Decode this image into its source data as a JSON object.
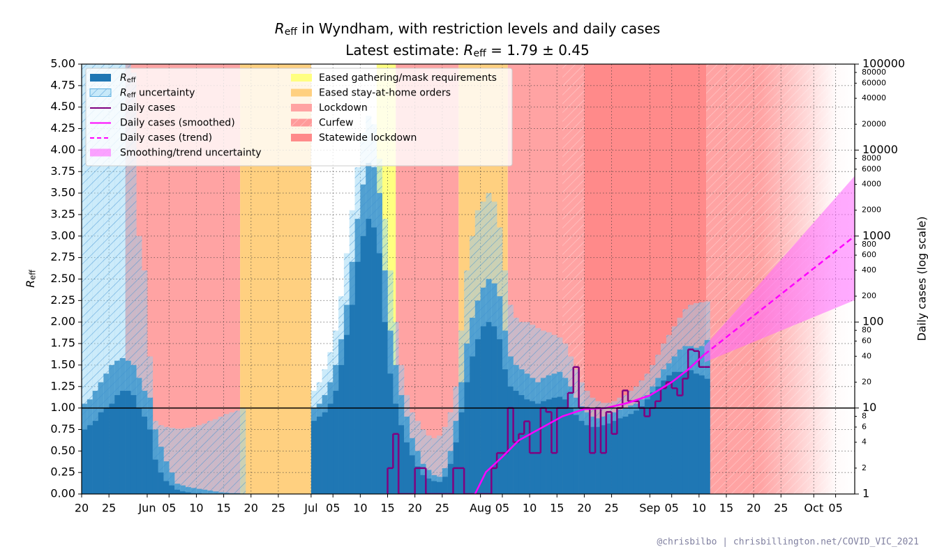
{
  "chart_data": {
    "type": "line",
    "title": [
      {
        "text": "R",
        "style": "italic"
      },
      {
        "text": "eff",
        "style": "sub"
      },
      {
        "text": " in Wyndham, with restriction levels and daily cases"
      }
    ],
    "subtitle": [
      {
        "text": "Latest estimate: "
      },
      {
        "text": "R",
        "style": "italic"
      },
      {
        "text": "eff",
        "style": "sub"
      },
      {
        "text": " = 1.79 ± 0.45"
      }
    ],
    "ylabel": [
      {
        "text": "R",
        "style": "italic"
      },
      {
        "text": "eff",
        "style": "sub"
      }
    ],
    "y2label": "Daily cases (log scale)",
    "xlim": [
      0,
      141.5
    ],
    "xticks": [
      {
        "value": 0,
        "label": "20"
      },
      {
        "value": 5,
        "label": "25"
      },
      {
        "value": 12,
        "label": "Jun"
      },
      {
        "value": 16,
        "label": "05"
      },
      {
        "value": 21,
        "label": "10"
      },
      {
        "value": 26,
        "label": "15"
      },
      {
        "value": 31,
        "label": "20"
      },
      {
        "value": 36,
        "label": "25"
      },
      {
        "value": 42,
        "label": "Jul"
      },
      {
        "value": 46,
        "label": "05"
      },
      {
        "value": 51,
        "label": "10"
      },
      {
        "value": 56,
        "label": "15"
      },
      {
        "value": 61,
        "label": "20"
      },
      {
        "value": 66,
        "label": "25"
      },
      {
        "value": 73,
        "label": "Aug"
      },
      {
        "value": 77,
        "label": "05"
      },
      {
        "value": 82,
        "label": "10"
      },
      {
        "value": 87,
        "label": "15"
      },
      {
        "value": 92,
        "label": "20"
      },
      {
        "value": 97,
        "label": "25"
      },
      {
        "value": 104,
        "label": "Sep"
      },
      {
        "value": 108,
        "label": "05"
      },
      {
        "value": 113,
        "label": "10"
      },
      {
        "value": 118,
        "label": "15"
      },
      {
        "value": 123,
        "label": "20"
      },
      {
        "value": 128,
        "label": "25"
      },
      {
        "value": 134,
        "label": "Oct"
      },
      {
        "value": 138,
        "label": "05"
      }
    ],
    "ylim": [
      0,
      5
    ],
    "yticks": [
      {
        "value": 0,
        "label": "0.00"
      },
      {
        "value": 0.25,
        "label": "0.25"
      },
      {
        "value": 0.5,
        "label": "0.50"
      },
      {
        "value": 0.75,
        "label": "0.75"
      },
      {
        "value": 1,
        "label": "1.00"
      },
      {
        "value": 1.25,
        "label": "1.25"
      },
      {
        "value": 1.5,
        "label": "1.50"
      },
      {
        "value": 1.75,
        "label": "1.75"
      },
      {
        "value": 2,
        "label": "2.00"
      },
      {
        "value": 2.25,
        "label": "2.25"
      },
      {
        "value": 2.5,
        "label": "2.50"
      },
      {
        "value": 2.75,
        "label": "2.75"
      },
      {
        "value": 3,
        "label": "3.00"
      },
      {
        "value": 3.25,
        "label": "3.25"
      },
      {
        "value": 3.5,
        "label": "3.50"
      },
      {
        "value": 3.75,
        "label": "3.75"
      },
      {
        "value": 4,
        "label": "4.00"
      },
      {
        "value": 4.25,
        "label": "4.25"
      },
      {
        "value": 4.5,
        "label": "4.50"
      },
      {
        "value": 4.75,
        "label": "4.75"
      },
      {
        "value": 5,
        "label": "5.00"
      }
    ],
    "y2lim": [
      1,
      100000
    ],
    "y2scale": "log",
    "y2ticks": [
      1,
      10,
      100,
      1000,
      10000,
      100000
    ],
    "y2minorticks": [
      2,
      4,
      6,
      8,
      20,
      40,
      60,
      80,
      200,
      400,
      600,
      800,
      2000,
      4000,
      6000,
      8000,
      20000,
      40000,
      60000,
      80000
    ],
    "grid": true,
    "hline": 1,
    "legend": "upper left",
    "restrictions": [
      {
        "name": "Eased gathering/mask requirements",
        "color": "#ffff80",
        "hatch": false
      },
      {
        "name": "Eased stay-at-home orders",
        "color": "#ffd080",
        "hatch": false
      },
      {
        "name": "Lockdown",
        "color": "#ffa3a3",
        "hatch": false
      },
      {
        "name": "Curfew",
        "color": "#ff9a9a",
        "hatch": true
      },
      {
        "name": "Statewide lockdown",
        "color": "#ff8a8a",
        "hatch": false
      }
    ],
    "periods": [
      {
        "level": 2,
        "start": 8,
        "end": 29
      },
      {
        "level": 1,
        "start": 29,
        "end": 42
      },
      {
        "level": 0,
        "start": 54,
        "end": 57.5
      },
      {
        "level": 2,
        "start": 57.5,
        "end": 69
      },
      {
        "level": 1,
        "start": 69,
        "end": 78
      },
      {
        "level": 2,
        "start": 78,
        "end": 92
      },
      {
        "level": 3,
        "start": 88,
        "end": 92
      },
      {
        "level": 4,
        "start": 92,
        "end": 114.3
      },
      {
        "level": 2,
        "start": 114.3,
        "end": 141.5
      },
      {
        "level": 3,
        "start": 114.3,
        "end": 141.5
      }
    ],
    "series": [
      {
        "name": [
          {
            "text": "R",
            "style": "italic"
          },
          {
            "text": "eff",
            "style": "sub"
          }
        ],
        "type": "step_area",
        "color": "#1f77b4",
        "band_name": [
          {
            "text": "R",
            "style": "italic"
          },
          {
            "text": "eff",
            "style": "sub"
          },
          {
            "text": " uncertainty"
          }
        ],
        "band_color": "#8fd3f5",
        "x": [
          0,
          1,
          2,
          3,
          4,
          5,
          6,
          7,
          8,
          9,
          10,
          11,
          12,
          13,
          14,
          15,
          16,
          17,
          18,
          19,
          20,
          21,
          22,
          23,
          24,
          25,
          26,
          27,
          28,
          29,
          30,
          31,
          32,
          33,
          34,
          35,
          36,
          37,
          38,
          39,
          40,
          41,
          42,
          43,
          44,
          45,
          46,
          47,
          48,
          49,
          50,
          51,
          52,
          53,
          54,
          55,
          56,
          57,
          58,
          59,
          60,
          61,
          62,
          63,
          64,
          65,
          66,
          67,
          68,
          69,
          70,
          71,
          72,
          73,
          74,
          75,
          76,
          77,
          78,
          79,
          80,
          81,
          82,
          83,
          84,
          85,
          86,
          87,
          88,
          89,
          90,
          91,
          92,
          93,
          94,
          95,
          96,
          97,
          98,
          99,
          100,
          101,
          102,
          103,
          104,
          105,
          106,
          107,
          108,
          109,
          110,
          111,
          112,
          113,
          114
        ],
        "values": [
          1.05,
          1.1,
          1.2,
          1.3,
          1.4,
          1.5,
          1.55,
          1.58,
          1.55,
          1.5,
          1.35,
          1.2,
          1.12,
          0.75,
          0.55,
          0.38,
          0.25,
          0.12,
          0.1,
          0.08,
          0.07,
          0.06,
          0.05,
          0.04,
          0.03,
          0.02,
          0.015,
          0.01,
          0.01,
          0.005,
          null,
          null,
          null,
          null,
          null,
          null,
          null,
          null,
          null,
          null,
          null,
          null,
          1.0,
          1.05,
          1.15,
          1.3,
          1.5,
          1.8,
          2.2,
          2.7,
          3.2,
          3.6,
          3.85,
          3.8,
          3.5,
          2.6,
          1.9,
          1.5,
          1.15,
          0.9,
          0.65,
          0.5,
          0.35,
          0.28,
          0.22,
          0.2,
          0.3,
          0.5,
          0.85,
          1.3,
          1.75,
          2.05,
          2.25,
          2.4,
          2.5,
          2.45,
          2.3,
          1.9,
          1.6,
          1.5,
          1.45,
          1.4,
          1.35,
          1.3,
          1.35,
          1.38,
          1.4,
          1.42,
          1.35,
          1.25,
          1.12,
          1.02,
          0.95,
          0.9,
          0.88,
          0.9,
          0.93,
          0.95,
          0.98,
          1.0,
          1.03,
          1.05,
          1.1,
          1.15,
          1.25,
          1.35,
          1.45,
          1.52,
          1.6,
          1.68,
          1.72,
          1.72,
          1.7,
          1.72,
          1.79
        ],
        "lower": [
          0.75,
          0.8,
          0.85,
          0.95,
          1.0,
          1.05,
          1.15,
          1.2,
          1.2,
          1.15,
          1.0,
          0.9,
          0.75,
          0.4,
          0.25,
          0.15,
          0.1,
          0.05,
          0.03,
          0.02,
          0.01,
          0.01,
          0,
          0,
          0,
          0,
          0,
          0,
          0,
          0,
          null,
          null,
          null,
          null,
          null,
          null,
          null,
          null,
          null,
          null,
          null,
          null,
          0.85,
          0.9,
          0.95,
          1.05,
          1.2,
          1.5,
          1.85,
          2.2,
          2.7,
          3.0,
          3.2,
          3.1,
          2.8,
          2.0,
          1.4,
          1.05,
          0.8,
          0.6,
          0.45,
          0.32,
          0.22,
          0.18,
          0.15,
          0.14,
          0.2,
          0.35,
          0.6,
          0.95,
          1.3,
          1.6,
          1.8,
          1.95,
          2.0,
          1.95,
          1.8,
          1.45,
          1.25,
          1.2,
          1.15,
          1.1,
          1.08,
          1.05,
          1.08,
          1.1,
          1.12,
          1.13,
          1.1,
          1.0,
          0.92,
          0.85,
          0.8,
          0.78,
          0.78,
          0.8,
          0.82,
          0.85,
          0.88,
          0.9,
          0.93,
          0.97,
          1.02,
          1.1,
          1.18,
          1.25,
          1.32,
          1.38,
          1.42,
          1.42,
          1.42,
          1.44,
          1.4,
          1.38,
          1.34
        ],
        "upper": [
          5.5,
          5.5,
          5.5,
          5.5,
          5.5,
          5.5,
          5.5,
          5.5,
          5.5,
          4.9,
          3.0,
          2.6,
          1.6,
          0.85,
          0.8,
          0.78,
          0.77,
          0.76,
          0.76,
          0.77,
          0.78,
          0.8,
          0.82,
          0.85,
          0.87,
          0.9,
          0.93,
          0.95,
          0.97,
          1.0,
          null,
          null,
          null,
          null,
          null,
          null,
          null,
          null,
          null,
          null,
          null,
          null,
          1.2,
          1.3,
          1.45,
          1.65,
          1.9,
          2.3,
          2.8,
          3.3,
          3.8,
          4.2,
          4.4,
          4.3,
          3.9,
          3.2,
          2.6,
          2.0,
          1.5,
          1.15,
          0.95,
          0.85,
          0.75,
          0.68,
          0.65,
          0.68,
          0.78,
          0.95,
          1.25,
          1.9,
          2.6,
          3.0,
          3.3,
          3.4,
          3.5,
          3.4,
          3.1,
          2.6,
          2.2,
          2.05,
          2.0,
          2.0,
          1.97,
          1.93,
          1.9,
          1.88,
          1.85,
          1.82,
          1.75,
          1.6,
          1.45,
          1.3,
          1.2,
          1.12,
          1.08,
          1.06,
          1.06,
          1.08,
          1.12,
          1.15,
          1.2,
          1.25,
          1.32,
          1.4,
          1.5,
          1.62,
          1.75,
          1.85,
          1.95,
          2.05,
          2.15,
          2.2,
          2.22,
          2.23,
          2.24
        ]
      },
      {
        "name": "Daily cases",
        "type": "step",
        "axis": "y2",
        "color": "#800080",
        "x": [
          56,
          57,
          58,
          59,
          60,
          61,
          62,
          63,
          64,
          65,
          66,
          67,
          68,
          69,
          70,
          71,
          72,
          73,
          74,
          75,
          76,
          77,
          78,
          79,
          80,
          81,
          82,
          83,
          84,
          85,
          86,
          87,
          88,
          89,
          90,
          91,
          92,
          93,
          94,
          95,
          96,
          97,
          98,
          99,
          100,
          101,
          102,
          103,
          104,
          105,
          106,
          107,
          108,
          109,
          110,
          111,
          112,
          113,
          114
        ],
        "values": [
          2,
          5,
          1,
          1,
          1,
          2,
          2,
          1,
          1,
          1,
          1,
          1,
          2,
          2,
          1,
          1,
          1,
          1,
          1,
          2,
          3,
          3,
          10,
          4,
          5,
          7,
          3,
          3,
          10,
          9,
          3,
          10,
          10,
          15,
          30,
          10,
          10,
          3,
          10,
          3,
          9,
          5,
          10,
          16,
          12,
          12,
          10,
          8,
          10,
          12,
          17,
          20,
          17,
          14,
          22,
          48,
          46,
          30,
          30
        ]
      },
      {
        "name": "Daily cases (smoothed)",
        "type": "line",
        "axis": "y2",
        "color": "#ff00ff",
        "x": [
          72,
          74,
          77,
          80,
          84,
          88,
          92,
          96,
          100,
          104,
          108,
          111,
          114
        ],
        "values": [
          1,
          1.8,
          2.7,
          4.2,
          5.8,
          8,
          9.7,
          10,
          11.5,
          14,
          20,
          28,
          42
        ]
      },
      {
        "name": "Daily cases (trend)",
        "type": "line",
        "axis": "y2",
        "color": "#ff00ff",
        "dash": true,
        "band_name": "Smoothing/trend uncertainty",
        "band_color": "#ff66ff",
        "x": [
          114,
          141.5
        ],
        "values": [
          42,
          1000
        ],
        "lower": [
          34,
          180
        ],
        "upper": [
          52,
          5000
        ]
      }
    ],
    "footer": "@chrisbilbo | chrisbillington.net/COVID_VIC_2021"
  }
}
